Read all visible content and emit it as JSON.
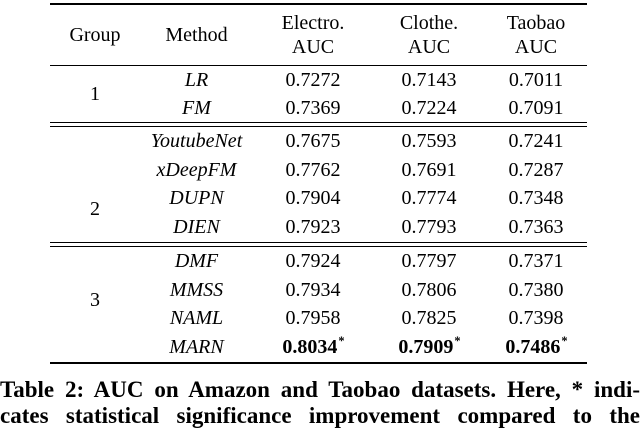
{
  "colors": {
    "text": "#000000",
    "background": "#ffffff"
  },
  "table": {
    "headers": [
      {
        "line1": "Group",
        "line2": ""
      },
      {
        "line1": "Method",
        "line2": ""
      },
      {
        "line1": "Electro.",
        "line2": "AUC"
      },
      {
        "line1": "Clothe.",
        "line2": "AUC"
      },
      {
        "line1": "Taobao",
        "line2": "AUC"
      }
    ],
    "groups": [
      {
        "label": "1",
        "rows": [
          {
            "method": "LR",
            "electro": "0.7272",
            "clothe": "0.7143",
            "taobao": "0.7011"
          },
          {
            "method": "FM",
            "electro": "0.7369",
            "clothe": "0.7224",
            "taobao": "0.7091"
          }
        ]
      },
      {
        "label": "2",
        "rows": [
          {
            "method": "YoutubeNet",
            "electro": "0.7675",
            "clothe": "0.7593",
            "taobao": "0.7241"
          },
          {
            "method": "xDeepFM",
            "electro": "0.7762",
            "clothe": "0.7691",
            "taobao": "0.7287"
          },
          {
            "method": "DUPN",
            "electro": "0.7904",
            "clothe": "0.7774",
            "taobao": "0.7348"
          },
          {
            "method": "DIEN",
            "electro": "0.7923",
            "clothe": "0.7793",
            "taobao": "0.7363"
          }
        ]
      },
      {
        "label": "3",
        "rows": [
          {
            "method": "DMF",
            "electro": "0.7924",
            "clothe": "0.7797",
            "taobao": "0.7371"
          },
          {
            "method": "MMSS",
            "electro": "0.7934",
            "clothe": "0.7806",
            "taobao": "0.7380"
          },
          {
            "method": "NAML",
            "electro": "0.7958",
            "clothe": "0.7825",
            "taobao": "0.7398"
          },
          {
            "method": "MARN",
            "electro": "0.8034",
            "clothe": "0.7909",
            "taobao": "0.7486",
            "star": "*"
          }
        ]
      }
    ]
  },
  "caption": {
    "line1": "Table 2: AUC on Amazon and Taobao datasets. Here, * indi-",
    "line2": "cates statistical significance improvement compared to the"
  }
}
